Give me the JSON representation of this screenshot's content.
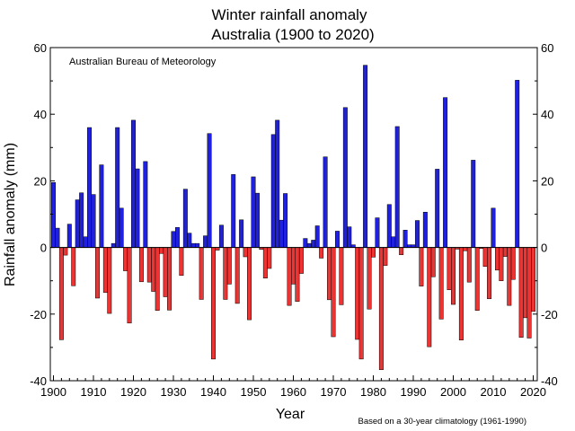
{
  "chart_data": {
    "type": "bar",
    "title": "Winter rainfall anomaly",
    "subtitle": "Australia (1900 to 2020)",
    "xlabel": "Year",
    "ylabel": "Rainfall anomaly (mm)",
    "source": "Australian Bureau of Meteorology",
    "footnote": "Based on a 30-year climatology (1961-1990)",
    "xlim": [
      1900,
      2020
    ],
    "ylim": [
      -40,
      60
    ],
    "x_ticks": [
      "1900",
      "1910",
      "1920",
      "1930",
      "1940",
      "1950",
      "1960",
      "1970",
      "1980",
      "1990",
      "2000",
      "2010",
      "2020"
    ],
    "y_ticks": [
      "-40",
      "-20",
      "0",
      "20",
      "40",
      "60"
    ],
    "positive_color": "#2020e0",
    "negative_color": "#ee3333",
    "grid": false,
    "years": [
      1900,
      1901,
      1902,
      1903,
      1904,
      1905,
      1906,
      1907,
      1908,
      1909,
      1910,
      1911,
      1912,
      1913,
      1914,
      1915,
      1916,
      1917,
      1918,
      1919,
      1920,
      1921,
      1922,
      1923,
      1924,
      1925,
      1926,
      1927,
      1928,
      1929,
      1930,
      1931,
      1932,
      1933,
      1934,
      1935,
      1936,
      1937,
      1938,
      1939,
      1940,
      1941,
      1942,
      1943,
      1944,
      1945,
      1946,
      1947,
      1948,
      1949,
      1950,
      1951,
      1952,
      1953,
      1954,
      1955,
      1956,
      1957,
      1958,
      1959,
      1960,
      1961,
      1962,
      1963,
      1964,
      1965,
      1966,
      1967,
      1968,
      1969,
      1970,
      1971,
      1972,
      1973,
      1974,
      1975,
      1976,
      1977,
      1978,
      1979,
      1980,
      1981,
      1982,
      1983,
      1984,
      1985,
      1986,
      1987,
      1988,
      1989,
      1990,
      1991,
      1992,
      1993,
      1994,
      1995,
      1996,
      1997,
      1998,
      1999,
      2000,
      2001,
      2002,
      2003,
      2004,
      2005,
      2006,
      2007,
      2008,
      2009,
      2010,
      2011,
      2012,
      2013,
      2014,
      2015,
      2016,
      2017,
      2018,
      2019,
      2020
    ],
    "values": [
      19.5,
      5.8,
      -27.7,
      -2.3,
      7,
      -11.5,
      14.3,
      16.4,
      3.2,
      36,
      15.9,
      -15.2,
      24.8,
      -13.5,
      -19.8,
      1.2,
      36,
      11.8,
      -7,
      -22.7,
      38.2,
      23.6,
      -10.3,
      25.8,
      -10.4,
      -13.2,
      -18.9,
      -1.8,
      -14.8,
      -18.8,
      4.8,
      6,
      -8.4,
      17.5,
      4.3,
      1.2,
      1.2,
      -15.6,
      3.5,
      34.2,
      -33.5,
      -0.8,
      6.7,
      -15.6,
      -11,
      21.9,
      -16.8,
      8.3,
      -2.8,
      -21.7,
      21.2,
      16.3,
      -0.6,
      -9.2,
      -6.3,
      33.9,
      38.2,
      8.2,
      16.2,
      -17.4,
      -11,
      -16.2,
      -7.8,
      2.7,
      1.2,
      2.2,
      6.5,
      -3.2,
      27.2,
      -15.7,
      -26.8,
      4.9,
      -17.2,
      42,
      6.2,
      0.8,
      -27.6,
      -33.5,
      54.7,
      -18.5,
      -2.9,
      8.9,
      -36.7,
      -5.4,
      12.9,
      3.2,
      36.3,
      -2.2,
      5.2,
      0.8,
      0.8,
      8.1,
      -11.6,
      10.6,
      -29.8,
      -8.8,
      23.5,
      -21.5,
      45,
      -12.7,
      -17.1,
      -0.5,
      -27.8,
      -1,
      -10.4,
      26.2,
      -18.9,
      -0.3,
      -5.7,
      -15.4,
      11.8,
      -6.8,
      -10,
      -2.7,
      -17.4,
      -9.6,
      50.2,
      -27,
      -21.1,
      -27.2,
      -19.2
    ]
  }
}
